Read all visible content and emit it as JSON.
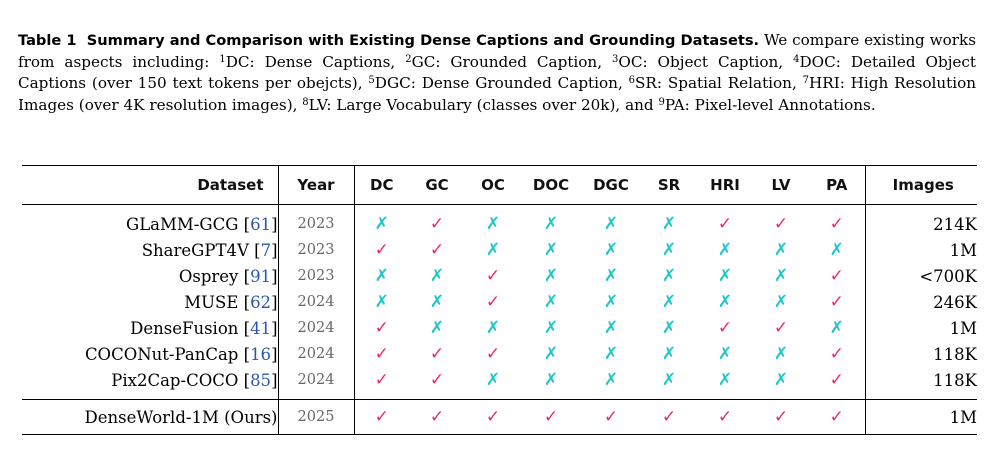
{
  "caption": {
    "label": "Table 1",
    "title": "Summary and Comparison with Existing Dense Captions and Grounding Datasets.",
    "intro": "We compare existing works from aspects including:",
    "items": [
      {
        "sup": "1",
        "text": "DC: Dense Captions,"
      },
      {
        "sup": "2",
        "text": "GC: Grounded Caption,"
      },
      {
        "sup": "3",
        "text": "OC: Object Caption,"
      },
      {
        "sup": "4",
        "text": "DOC: Detailed Object Captions (over 150 text tokens per obejcts),"
      },
      {
        "sup": "5",
        "text": "DGC: Dense Grounded Caption,"
      },
      {
        "sup": "6",
        "text": "SR: Spatial Relation,"
      },
      {
        "sup": "7",
        "text": "HRI: High Resolution Images (over 4K resolution images),"
      },
      {
        "sup": "8",
        "text": "LV: Large Vocabulary (classes over 20k), and"
      },
      {
        "sup": "9",
        "text": "PA: Pixel-level Annotations."
      }
    ]
  },
  "table": {
    "headers": {
      "dataset": "Dataset",
      "year": "Year",
      "dc": "DC",
      "gc": "GC",
      "oc": "OC",
      "doc": "DOC",
      "dgc": "DGC",
      "sr": "SR",
      "hri": "HRI",
      "lv": "LV",
      "pa": "PA",
      "images": "Images"
    },
    "marks": {
      "yes": "✓",
      "no": "✗"
    },
    "colors": {
      "yes": "#f0266c",
      "no": "#1cc6c9",
      "ref": "#2a57a8"
    },
    "rows": [
      {
        "name": "GLaMM-GCG",
        "ref": "61",
        "year": "2023",
        "images": "214K",
        "flags": {
          "dc": "no",
          "gc": "yes",
          "oc": "no",
          "doc": "no",
          "dgc": "no",
          "sr": "no",
          "hri": "yes",
          "lv": "yes",
          "pa": "yes"
        }
      },
      {
        "name": "ShareGPT4V",
        "ref": "7",
        "year": "2023",
        "images": "1M",
        "flags": {
          "dc": "yes",
          "gc": "yes",
          "oc": "no",
          "doc": "no",
          "dgc": "no",
          "sr": "no",
          "hri": "no",
          "lv": "no",
          "pa": "no"
        }
      },
      {
        "name": "Osprey",
        "ref": "91",
        "year": "2023",
        "images": "<700K",
        "flags": {
          "dc": "no",
          "gc": "no",
          "oc": "yes",
          "doc": "no",
          "dgc": "no",
          "sr": "no",
          "hri": "no",
          "lv": "no",
          "pa": "yes"
        }
      },
      {
        "name": "MUSE",
        "ref": "62",
        "year": "2024",
        "images": "246K",
        "flags": {
          "dc": "no",
          "gc": "no",
          "oc": "yes",
          "doc": "no",
          "dgc": "no",
          "sr": "no",
          "hri": "no",
          "lv": "no",
          "pa": "yes"
        }
      },
      {
        "name": "DenseFusion",
        "ref": "41",
        "year": "2024",
        "images": "1M",
        "flags": {
          "dc": "yes",
          "gc": "no",
          "oc": "no",
          "doc": "no",
          "dgc": "no",
          "sr": "no",
          "hri": "yes",
          "lv": "yes",
          "pa": "no"
        }
      },
      {
        "name": "COCONut-PanCap",
        "ref": "16",
        "year": "2024",
        "images": "118K",
        "flags": {
          "dc": "yes",
          "gc": "yes",
          "oc": "yes",
          "doc": "no",
          "dgc": "no",
          "sr": "no",
          "hri": "no",
          "lv": "no",
          "pa": "yes"
        }
      },
      {
        "name": "Pix2Cap-COCO",
        "ref": "85",
        "year": "2024",
        "images": "118K",
        "flags": {
          "dc": "yes",
          "gc": "yes",
          "oc": "no",
          "doc": "no",
          "dgc": "no",
          "sr": "no",
          "hri": "no",
          "lv": "no",
          "pa": "yes"
        }
      },
      {
        "name": "DenseWorld-1M (Ours)",
        "ref": "",
        "year": "2025",
        "images": "1M",
        "ours": true,
        "flags": {
          "dc": "yes",
          "gc": "yes",
          "oc": "yes",
          "doc": "yes",
          "dgc": "yes",
          "sr": "yes",
          "hri": "yes",
          "lv": "yes",
          "pa": "yes"
        }
      }
    ]
  }
}
